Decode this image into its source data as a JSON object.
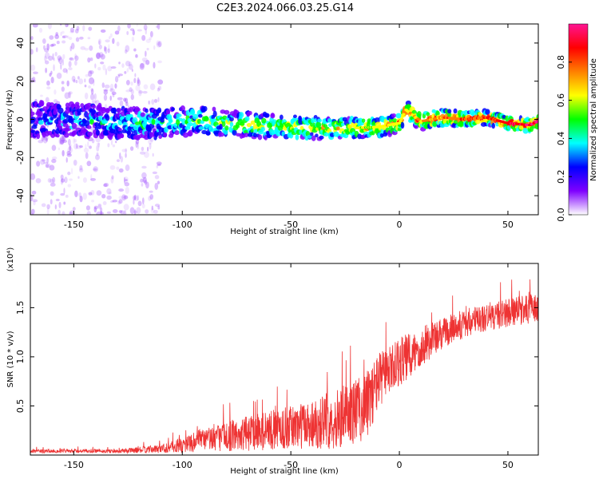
{
  "chart_data": [
    {
      "type": "heatmap",
      "title": "C2E3.2024.066.03.25.G14",
      "xlabel": "Height of straight line (km)",
      "ylabel": "Frequency (Hz)",
      "xlim": [
        -170,
        64
      ],
      "ylim": [
        -50,
        50
      ],
      "x_ticks": [
        -150,
        -100,
        -50,
        0,
        50
      ],
      "y_ticks": [
        -40,
        -20,
        0,
        20,
        40
      ],
      "colorbar": {
        "label": "Normalized spectral amplitude",
        "range": [
          0,
          1
        ],
        "ticks": [
          "0.0",
          "0.2",
          "0.4",
          "0.6",
          "0.8"
        ],
        "colors": [
          "#ffffff",
          "#7f00ff",
          "#0000ff",
          "#00ffff",
          "#00ff00",
          "#ffff00",
          "#ff8000",
          "#ff0000",
          "#ff1493"
        ]
      },
      "ridge": {
        "x": [
          -170,
          -150,
          -130,
          -110,
          -90,
          -70,
          -50,
          -30,
          -10,
          0,
          3,
          10,
          20,
          30,
          40,
          50,
          60,
          64
        ],
        "frequency": [
          0,
          0,
          -2,
          -2,
          -1,
          -3,
          -4,
          -5,
          -4,
          -2,
          5,
          -1,
          1,
          0,
          1,
          -2,
          -3,
          -1
        ]
      }
    },
    {
      "type": "line",
      "xlabel": "Height of straight line (km)",
      "ylabel": "SNR (10 * v/v)",
      "y_multiplier": "(x10⁴)",
      "xlim": [
        -170,
        64
      ],
      "ylim": [
        0,
        1.95
      ],
      "x_ticks": [
        -150,
        -100,
        -50,
        0,
        50
      ],
      "y_ticks": [
        "0.5",
        "1.0",
        "1.5"
      ],
      "y_tick_values": [
        0.5,
        1.0,
        1.5
      ],
      "series": [
        {
          "color": "#ee3333",
          "envelope": {
            "x": [
              -170,
              -130,
              -112,
              -100,
              -90,
              -70,
              -50,
              -30,
              -15,
              -10,
              -5,
              0,
              5,
              10,
              25,
              40,
              50,
              64
            ],
            "mean": [
              0.04,
              0.04,
              0.06,
              0.1,
              0.16,
              0.22,
              0.28,
              0.36,
              0.5,
              0.75,
              0.85,
              0.95,
              1.0,
              1.1,
              1.3,
              1.4,
              1.45,
              1.5
            ],
            "spread": [
              0.02,
              0.02,
              0.04,
              0.08,
              0.12,
              0.18,
              0.22,
              0.3,
              0.35,
              0.3,
              0.25,
              0.25,
              0.25,
              0.2,
              0.15,
              0.15,
              0.15,
              0.15
            ]
          }
        }
      ]
    }
  ]
}
